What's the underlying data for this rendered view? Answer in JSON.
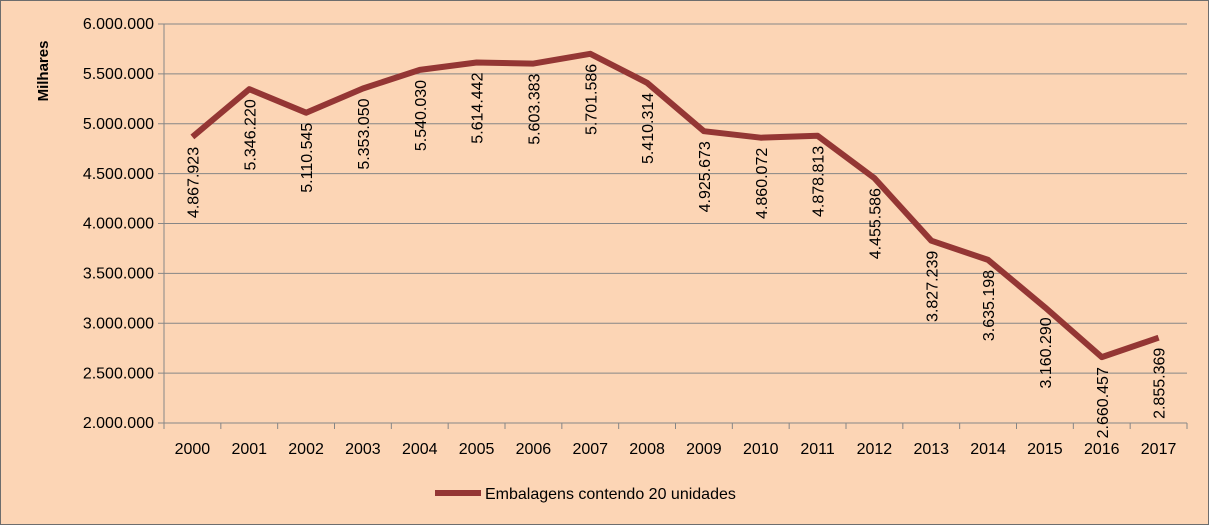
{
  "chart_data": {
    "type": "line",
    "title": "",
    "xlabel": "",
    "ylabel": "Milhares",
    "ylim": [
      2000000,
      6000000
    ],
    "y_ticks": [
      "2.000.000",
      "2.500.000",
      "3.000.000",
      "3.500.000",
      "4.000.000",
      "4.500.000",
      "5.000.000",
      "5.500.000",
      "6.000.000"
    ],
    "y_tick_values": [
      2000000,
      2500000,
      3000000,
      3500000,
      4000000,
      4500000,
      5000000,
      5500000,
      6000000
    ],
    "categories": [
      "2000",
      "2001",
      "2002",
      "2003",
      "2004",
      "2005",
      "2006",
      "2007",
      "2008",
      "2009",
      "2010",
      "2011",
      "2012",
      "2013",
      "2014",
      "2015",
      "2016",
      "2017"
    ],
    "series": [
      {
        "name": "Embalagens contendo 20 unidades",
        "color": "#943634",
        "values": [
          4867923,
          5346220,
          5110545,
          5353050,
          5540030,
          5614442,
          5603383,
          5701586,
          5410314,
          4925673,
          4860072,
          4878813,
          4455586,
          3827239,
          3635198,
          3160290,
          2660457,
          2855369
        ],
        "labels": [
          "4.867.923",
          "5.346.220",
          "5.110.545",
          "5.353.050",
          "5.540.030",
          "5.614.442",
          "5.603.383",
          "5.701.586",
          "5.410.314",
          "4.925.673",
          "4.860.072",
          "4.878.813",
          "4.455.586",
          "3.827.239",
          "3.635.198",
          "3.160.290",
          "2.660.457",
          "2.855.369"
        ]
      }
    ],
    "grid": true,
    "legend_position": "bottom",
    "colors": {
      "background": "#fcd5b5",
      "plot_area": "#fcd5b5",
      "gridline": "#868686",
      "line": "#943634"
    }
  }
}
